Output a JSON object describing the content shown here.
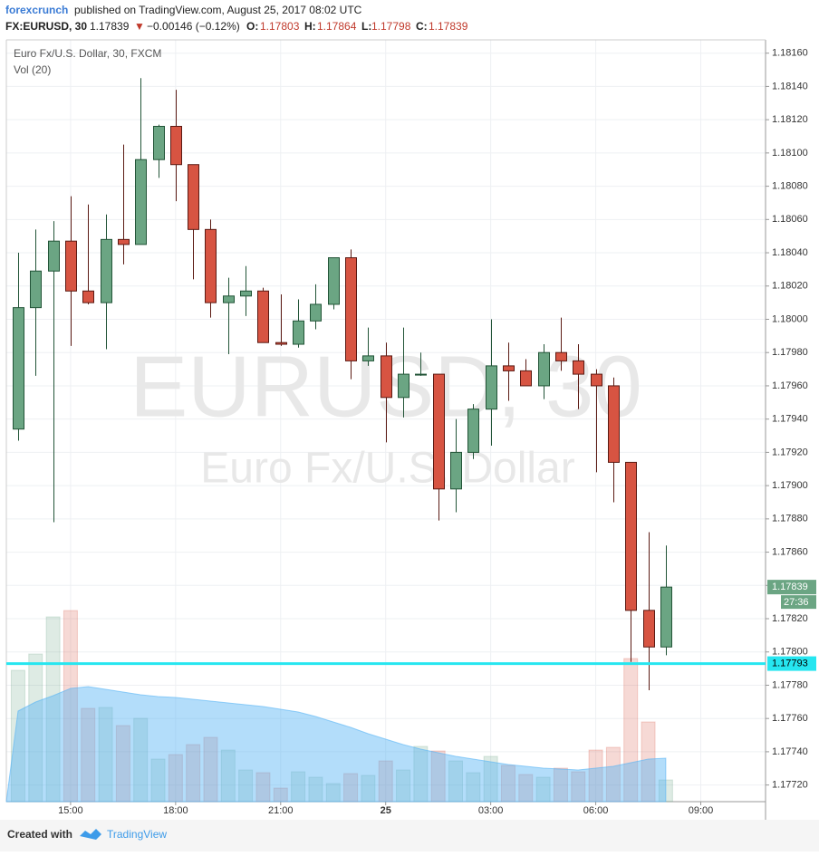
{
  "header": {
    "author": "forexcrunch",
    "published": "published on TradingView.com, August 25, 2017 08:02 UTC",
    "symbol": "FX:EURUSD, 30",
    "last": "1.17839",
    "arrow": "▼",
    "change": "−0.00146 (−0.12%)",
    "o_label": "O:",
    "o": "1.17803",
    "h_label": "H:",
    "h": "1.17864",
    "l_label": "L:",
    "l": "1.17798",
    "c_label": "C:",
    "c": "1.17839"
  },
  "chart_data": {
    "type": "candlestick",
    "title": "Euro Fx/U.S. Dollar, 30, FXCM",
    "watermark": "EURUSD, 30",
    "watermark_subtitle": "Euro Fx/U.S. Dollar",
    "up_color": "#6ba583",
    "down_color": "#d75442",
    "open": [
      1.17934,
      1.18007,
      1.18029,
      1.18047,
      1.18017,
      1.1801,
      1.18048,
      1.18045,
      1.18096,
      1.18116,
      1.18093,
      1.18054,
      1.1801,
      1.18014,
      1.18017,
      1.17986,
      1.17985,
      1.17999,
      1.18009,
      1.18037,
      1.17975,
      1.17978,
      1.17953,
      1.17967,
      1.17967,
      1.17898,
      1.1792,
      1.17946,
      1.17972,
      1.17969,
      1.1796,
      1.1798,
      1.17975,
      1.17967,
      1.1796,
      1.17914,
      1.17825,
      1.17803
    ],
    "high": [
      1.1804,
      1.18054,
      1.18059,
      1.18074,
      1.18069,
      1.18063,
      1.18105,
      1.18145,
      1.18117,
      1.18138,
      1.18093,
      1.1806,
      1.18025,
      1.18032,
      1.18019,
      1.18015,
      1.18012,
      1.18021,
      1.18037,
      1.18042,
      1.17995,
      1.17986,
      1.17995,
      1.1798,
      1.17967,
      1.1794,
      1.17949,
      1.18,
      1.17986,
      1.17976,
      1.17985,
      1.18001,
      1.17985,
      1.1797,
      1.17965,
      1.17914,
      1.17872,
      1.17864
    ],
    "low": [
      1.17927,
      1.17966,
      1.17878,
      1.17984,
      1.18009,
      1.17982,
      1.18033,
      1.18045,
      1.18085,
      1.18071,
      1.18024,
      1.18001,
      1.17979,
      1.18002,
      1.17986,
      1.17984,
      1.17983,
      1.17994,
      1.18006,
      1.17964,
      1.17972,
      1.17926,
      1.17941,
      1.17966,
      1.17879,
      1.17884,
      1.17916,
      1.17924,
      1.17951,
      1.1796,
      1.17952,
      1.17969,
      1.17946,
      1.17908,
      1.1789,
      1.17794,
      1.17777,
      1.17798
    ],
    "close": [
      1.18007,
      1.18029,
      1.18047,
      1.18017,
      1.1801,
      1.18048,
      1.18045,
      1.18096,
      1.18116,
      1.18093,
      1.18054,
      1.1801,
      1.18014,
      1.18017,
      1.17986,
      1.17985,
      1.17999,
      1.18009,
      1.18037,
      1.17975,
      1.17978,
      1.17953,
      1.17967,
      1.17967,
      1.17898,
      1.1792,
      1.17946,
      1.17972,
      1.17969,
      1.1796,
      1.1798,
      1.17975,
      1.17967,
      1.1796,
      1.17914,
      1.17825,
      1.17803,
      1.17839
    ],
    "volume": {
      "name": "Vol (20)",
      "color": "#56b4f5",
      "vlim": [
        0,
        841
      ],
      "values": [
        145,
        163,
        204,
        211,
        103,
        104,
        84,
        92,
        47,
        52,
        63,
        71,
        57,
        35,
        32,
        15,
        33,
        27,
        20,
        31,
        29,
        45,
        35,
        61,
        56,
        45,
        32,
        50,
        40,
        30,
        27,
        37,
        33,
        57,
        60,
        158,
        88,
        24
      ],
      "ma": [
        100,
        110,
        117,
        125,
        127,
        124,
        121,
        118,
        116,
        115,
        113,
        111,
        109,
        107,
        105,
        102,
        99,
        94,
        88,
        82,
        75,
        69,
        63,
        58,
        54,
        50,
        47,
        44,
        41,
        39,
        37,
        36,
        35,
        37,
        39,
        43,
        47,
        48
      ]
    },
    "xlim": [
      -0.67,
      42.7
    ],
    "xticks": [
      {
        "value": 3,
        "label": "15:00"
      },
      {
        "value": 9,
        "label": "18:00"
      },
      {
        "value": 15,
        "label": "21:00"
      },
      {
        "value": 21,
        "label": "25"
      },
      {
        "value": 27,
        "label": "03:00"
      },
      {
        "value": 33,
        "label": "06:00"
      },
      {
        "value": 39,
        "label": "09:00"
      }
    ],
    "ylim": [
      1.1771,
      1.18168
    ],
    "yticks": [
      {
        "value": 1.1816,
        "label": "1.18160"
      },
      {
        "value": 1.1814,
        "label": "1.18140"
      },
      {
        "value": 1.1812,
        "label": "1.18120"
      },
      {
        "value": 1.181,
        "label": "1.18100"
      },
      {
        "value": 1.1808,
        "label": "1.18080"
      },
      {
        "value": 1.1806,
        "label": "1.18060"
      },
      {
        "value": 1.1804,
        "label": "1.18040"
      },
      {
        "value": 1.1802,
        "label": "1.18020"
      },
      {
        "value": 1.18,
        "label": "1.18000"
      },
      {
        "value": 1.1798,
        "label": "1.17980"
      },
      {
        "value": 1.1796,
        "label": "1.17960"
      },
      {
        "value": 1.1794,
        "label": "1.17940"
      },
      {
        "value": 1.1792,
        "label": "1.17920"
      },
      {
        "value": 1.179,
        "label": "1.17900"
      },
      {
        "value": 1.1788,
        "label": "1.17880"
      },
      {
        "value": 1.1786,
        "label": "1.17860"
      },
      {
        "value": 1.1784,
        "label": "1.17840"
      },
      {
        "value": 1.1782,
        "label": "1.17820"
      },
      {
        "value": 1.178,
        "label": "1.17800"
      },
      {
        "value": 1.1778,
        "label": "1.17780"
      },
      {
        "value": 1.1776,
        "label": "1.17760"
      },
      {
        "value": 1.1774,
        "label": "1.17740"
      },
      {
        "value": 1.1772,
        "label": "1.17720"
      }
    ],
    "grid": true,
    "last_price": {
      "value": 1.17839,
      "label": "1.17839",
      "countdown": "27:36"
    },
    "hline": {
      "value": 1.17793,
      "label": "1.17793",
      "color": "#26e6f0"
    }
  },
  "footer": {
    "created": "Created with",
    "brand": "TradingView"
  }
}
